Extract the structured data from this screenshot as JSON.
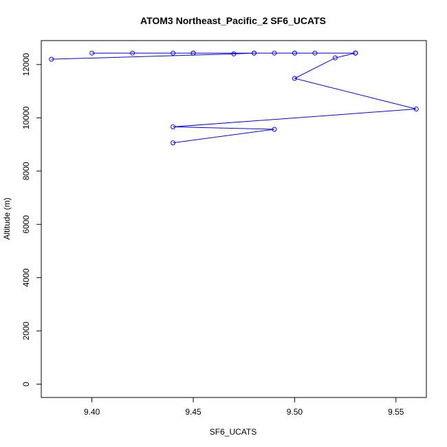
{
  "chart_data": {
    "type": "line",
    "title": "ATOM3 Northeast_Pacific_2 SF6_UCATS",
    "xlabel": "SF6_UCATS",
    "ylabel": "Altitude (m)",
    "xlim": [
      9.375,
      9.565
    ],
    "ylim": [
      -500,
      12900
    ],
    "x_ticks": [
      9.4,
      9.45,
      9.5,
      9.55
    ],
    "x_tick_labels": [
      "9.40",
      "9.45",
      "9.50",
      "9.55"
    ],
    "y_ticks": [
      0,
      2000,
      4000,
      6000,
      8000,
      10000,
      12000
    ],
    "y_tick_labels": [
      "0",
      "2000",
      "4000",
      "6000",
      "8000",
      "10000",
      "12000"
    ],
    "series_color": "#0000ff",
    "marker": "open-circle",
    "points": [
      {
        "x": 9.44,
        "y": 9060
      },
      {
        "x": 9.49,
        "y": 9570
      },
      {
        "x": 9.44,
        "y": 9660
      },
      {
        "x": 9.56,
        "y": 10330
      },
      {
        "x": 9.5,
        "y": 11480
      },
      {
        "x": 9.52,
        "y": 12250
      },
      {
        "x": 9.53,
        "y": 12430
      },
      {
        "x": 9.4,
        "y": 12430
      },
      {
        "x": 9.53,
        "y": 12430
      },
      {
        "x": 9.42,
        "y": 12430
      },
      {
        "x": 9.53,
        "y": 12430
      },
      {
        "x": 9.44,
        "y": 12430
      },
      {
        "x": 9.53,
        "y": 12430
      },
      {
        "x": 9.45,
        "y": 12430
      },
      {
        "x": 9.51,
        "y": 12430
      },
      {
        "x": 9.45,
        "y": 12430
      },
      {
        "x": 9.5,
        "y": 12430
      },
      {
        "x": 9.48,
        "y": 12430
      },
      {
        "x": 9.49,
        "y": 12430
      },
      {
        "x": 9.5,
        "y": 12430
      },
      {
        "x": 9.48,
        "y": 12430
      },
      {
        "x": 9.47,
        "y": 12400
      },
      {
        "x": 9.38,
        "y": 12200
      }
    ]
  }
}
